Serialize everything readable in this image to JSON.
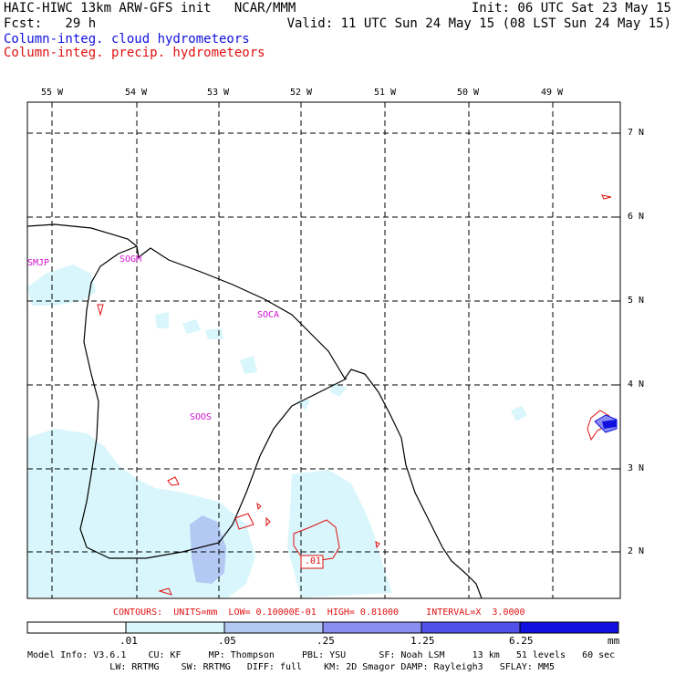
{
  "header": {
    "title_left": "HAIC-HIWC 13km ARW-GFS init   NCAR/MMM",
    "fcst_left": "Fcst:   29 h",
    "init_right": "Init: 06 UTC Sat 23 May 15",
    "valid_right": "Valid: 11 UTC Sun 24 May 15 (08 LST Sun 24 May 15)",
    "field_cloud": "Column-integ. cloud hydrometeors",
    "field_precip": "Column-integ. precip. hydrometeors"
  },
  "map": {
    "lon_labels": [
      "55 W",
      "54 W",
      "53 W",
      "52 W",
      "51 W",
      "50 W",
      "49 W"
    ],
    "lat_labels": [
      "7 N",
      "6 N",
      "5 N",
      "4 N",
      "3 N",
      "2 N"
    ],
    "stations": [
      "SMJP",
      "SOGM",
      "SOCA",
      "SOOS"
    ],
    "contour_label": ".01"
  },
  "contour_info": "CONTOURS:  UNITS=mm  LOW= 0.10000E-01  HIGH= 0.81000     INTERVAL=X  3.0000",
  "colorbar": {
    "labels": [
      ".01",
      ".05",
      ".25",
      "1.25",
      "6.25",
      "mm"
    ],
    "colors": [
      "#ffffff",
      "#d8f6fb",
      "#b4c8f4",
      "#8a8ef0",
      "#5050ea",
      "#1010e0"
    ]
  },
  "model_info": {
    "line1": "Model Info: V3.6.1    CU: KF     MP: Thompson     PBL: YSU      SF: Noah LSM     13 km   51 levels   60 sec",
    "line2": "               LW: RRTMG    SW: RRTMG   DIFF: full    KM: 2D Smagor DAMP: Rayleigh3   SFLAY: MM5"
  }
}
